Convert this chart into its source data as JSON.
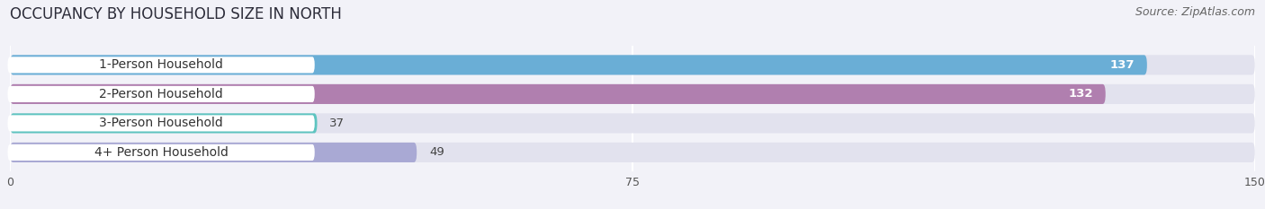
{
  "title": "OCCUPANCY BY HOUSEHOLD SIZE IN NORTH",
  "source": "Source: ZipAtlas.com",
  "categories": [
    "1-Person Household",
    "2-Person Household",
    "3-Person Household",
    "4+ Person Household"
  ],
  "values": [
    137,
    132,
    37,
    49
  ],
  "bar_colors": [
    "#6aaed6",
    "#b07faf",
    "#5ec4c0",
    "#a9a9d4"
  ],
  "value_inside": [
    true,
    true,
    false,
    false
  ],
  "xlim": [
    0,
    150
  ],
  "xticks": [
    0,
    75,
    150
  ],
  "background_color": "#f2f2f8",
  "bar_bg_color": "#e2e2ee",
  "label_bg_color": "#ffffff",
  "title_fontsize": 12,
  "source_fontsize": 9,
  "label_fontsize": 10,
  "value_fontsize": 9.5
}
